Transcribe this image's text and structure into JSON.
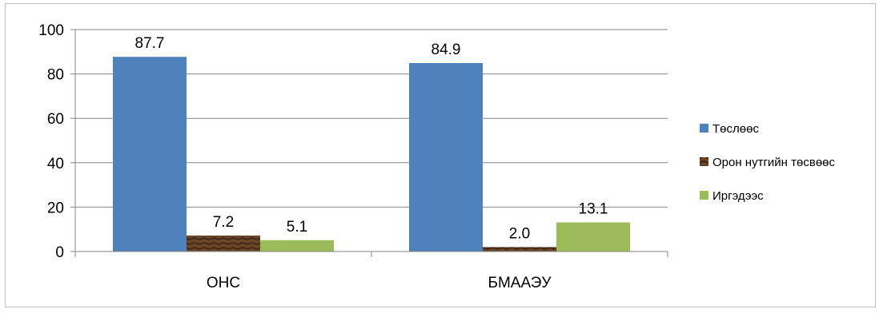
{
  "chart_data": {
    "type": "bar",
    "categories": [
      "ОНС",
      "БМААЭУ"
    ],
    "series": [
      {
        "name": "Төслөөс",
        "values": [
          87.7,
          84.9
        ],
        "labels": [
          "87.7",
          "84.9"
        ],
        "color": "#4f81bd"
      },
      {
        "name": "Орон нутгийн төсвөөс",
        "values": [
          7.2,
          2.0
        ],
        "labels": [
          "7.2",
          "2.0"
        ],
        "color": "#5a3a22"
      },
      {
        "name": "Иргэдээс",
        "values": [
          5.1,
          13.1
        ],
        "labels": [
          "5.1",
          "13.1"
        ],
        "color": "#9bbb59"
      }
    ],
    "ylim": [
      0,
      100
    ],
    "yticks": [
      0,
      20,
      40,
      60,
      80,
      100
    ],
    "grid": true,
    "legend_position": "right",
    "title": "",
    "xlabel": "",
    "ylabel": ""
  }
}
